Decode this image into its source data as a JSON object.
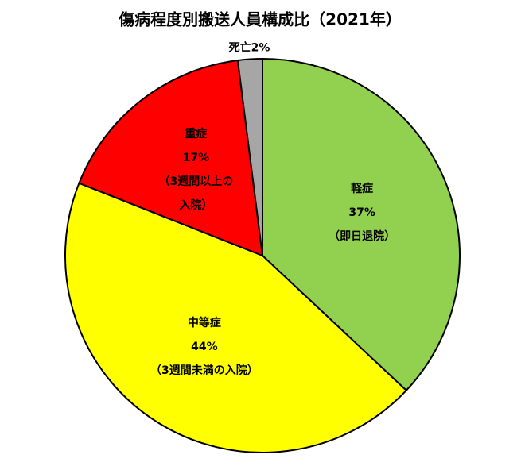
{
  "chart_data": {
    "type": "pie",
    "title": "傷病程度別搬送人員構成比（2021年）",
    "categories": [
      "軽症",
      "中等症",
      "重症",
      "死亡"
    ],
    "values": [
      37,
      44,
      17,
      2
    ],
    "value_labels": [
      "37%",
      "44%",
      "17%",
      "2%"
    ],
    "descriptions": [
      [
        "（即日退院）"
      ],
      [
        "（3週間未満の入院）"
      ],
      [
        "（3週間以上の",
        "入院）"
      ],
      null
    ],
    "colors": [
      "#92d050",
      "#ffff00",
      "#ff0000",
      "#a6a6a6"
    ]
  }
}
